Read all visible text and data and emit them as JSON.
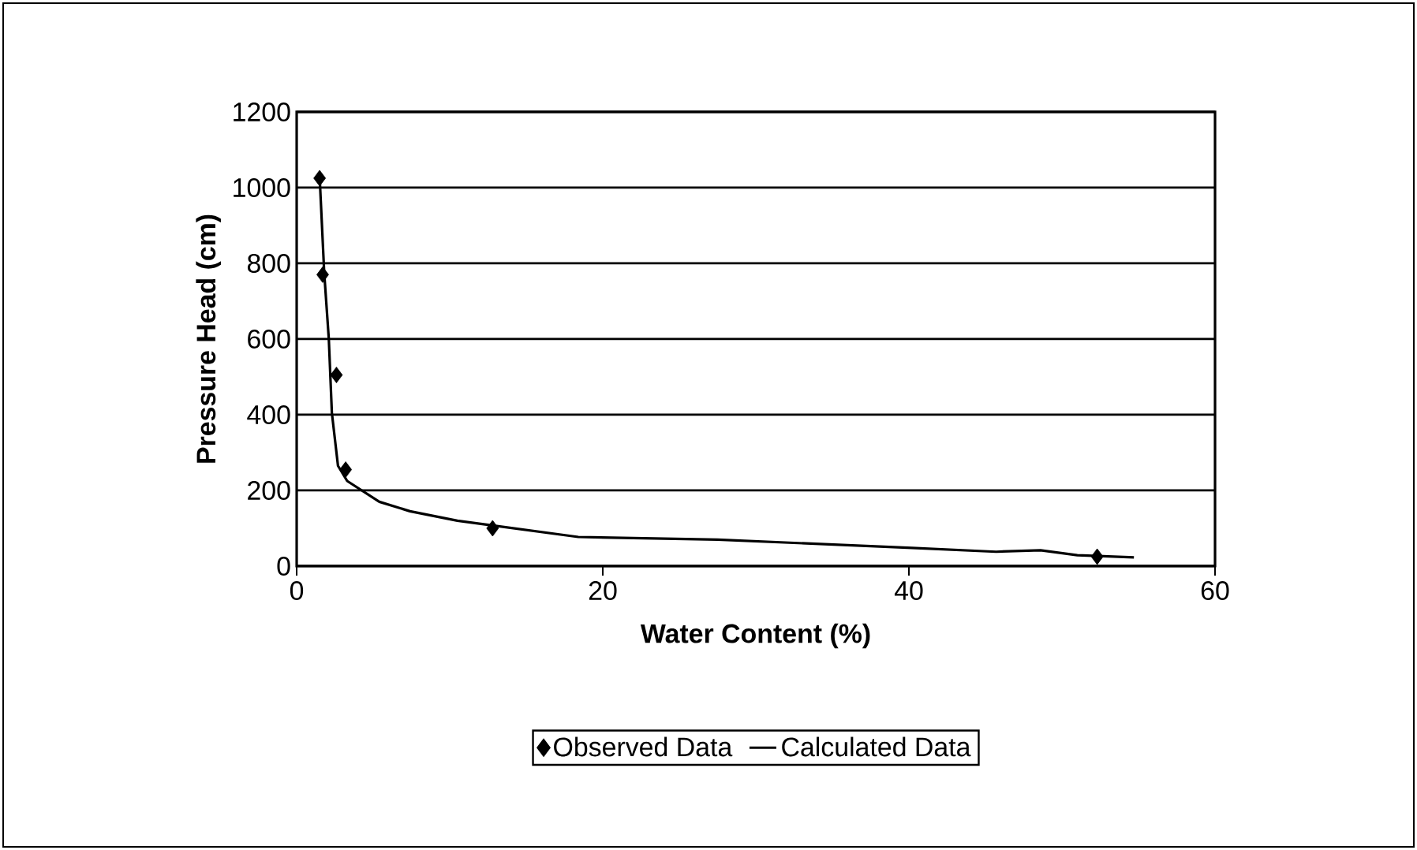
{
  "chart_data": {
    "type": "scatter",
    "xlabel": "Water Content (%)",
    "ylabel": "Pressure Head (cm)",
    "xlim": [
      0,
      60
    ],
    "xticks": [
      0,
      20,
      40,
      60
    ],
    "ylim": [
      0,
      1200
    ],
    "yticks": [
      0,
      200,
      400,
      600,
      800,
      1000,
      1200
    ],
    "grid": "y",
    "legend": "bottom",
    "series": [
      {
        "name": "Observed Data",
        "marker": "diamond",
        "color": "#000000",
        "x": [
          1.5,
          1.7,
          2.6,
          3.2,
          12.8,
          52.3
        ],
        "values": [
          1025,
          770,
          505,
          255,
          100,
          25
        ]
      },
      {
        "name": "Calculated Data",
        "type": "line",
        "marker": "none",
        "line_style": "solid",
        "color": "#000000",
        "x": [
          1.5,
          1.8,
          2.1,
          2.3,
          2.7,
          3.3,
          5.4,
          7.4,
          10.5,
          12.7,
          18.4,
          27.5,
          40.2,
          45.7,
          48.6,
          51,
          54.7
        ],
        "values": [
          1030,
          775,
          600,
          405,
          265,
          225,
          170,
          145,
          120,
          108,
          77,
          70,
          48,
          38,
          42,
          29,
          23
        ]
      }
    ]
  }
}
